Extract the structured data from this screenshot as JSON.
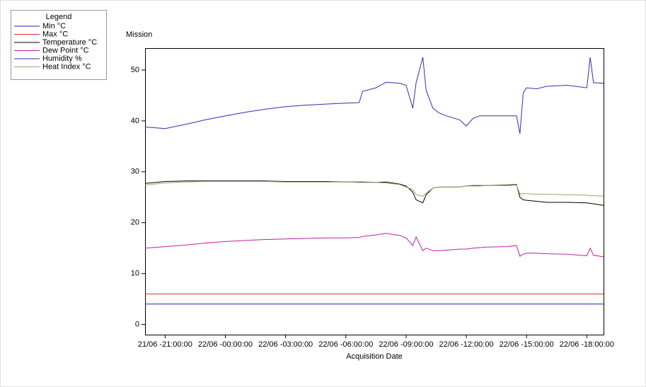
{
  "chart_data": {
    "type": "line",
    "title": "Mission",
    "x_label": "Acquisition Date",
    "legend_title": "Legend",
    "legend_position": "top-left",
    "x": [
      "21/06 -20:00:00",
      "21/06 -21:00:00",
      "21/06 -22:00:00",
      "21/06 -23:00:00",
      "22/06 -00:00:00",
      "22/06 -01:00:00",
      "22/06 -02:00:00",
      "22/06 -03:00:00",
      "22/06 -04:00:00",
      "22/06 -05:00:00",
      "22/06 -06:00:00",
      "22/06 -06:40:00",
      "22/06 -06:50:00",
      "22/06 -07:30:00",
      "22/06 -08:00:00",
      "22/06 -08:40:00",
      "22/06 -09:00:00",
      "22/06 -09:20:00",
      "22/06 -09:30:00",
      "22/06 -09:50:00",
      "22/06 -10:00:00",
      "22/06 -10:20:00",
      "22/06 -10:40:00",
      "22/06 -11:00:00",
      "22/06 -11:40:00",
      "22/06 -12:00:00",
      "22/06 -12:20:00",
      "22/06 -12:40:00",
      "22/06 -13:00:00",
      "22/06 -14:00:00",
      "22/06 -14:30:00",
      "22/06 -14:40:00",
      "22/06 -14:50:00",
      "22/06 -15:00:00",
      "22/06 -15:30:00",
      "22/06 -16:00:00",
      "22/06 -17:00:00",
      "22/06 -18:00:00",
      "22/06 -18:10:00",
      "22/06 -18:20:00",
      "22/06 -18:50:00"
    ],
    "xlim": [
      "21/06 -20:00:00",
      "22/06 -18:50:00"
    ],
    "xticks": [
      "21/06 -21:00:00",
      "22/06 -00:00:00",
      "22/06 -03:00:00",
      "22/06 -06:00:00",
      "22/06 -09:00:00",
      "22/06 -12:00:00",
      "22/06 -15:00:00",
      "22/06 -18:00:00"
    ],
    "ylim": [
      -2,
      54.3
    ],
    "yticks": [
      0,
      10,
      20,
      30,
      40,
      50
    ],
    "series": [
      {
        "name": "Min °C",
        "color": "#2020b0",
        "values": [
          4,
          4,
          4,
          4,
          4,
          4,
          4,
          4,
          4,
          4,
          4,
          4,
          4,
          4,
          4,
          4,
          4,
          4,
          4,
          4,
          4,
          4,
          4,
          4,
          4,
          4,
          4,
          4,
          4,
          4,
          4,
          4,
          4,
          4,
          4,
          4,
          4,
          4,
          4,
          4,
          4
        ]
      },
      {
        "name": "Max °C",
        "color": "#e03030",
        "values": [
          6,
          6,
          6,
          6,
          6,
          6,
          6,
          6,
          6,
          6,
          6,
          6,
          6,
          6,
          6,
          6,
          6,
          6,
          6,
          6,
          6,
          6,
          6,
          6,
          6,
          6,
          6,
          6,
          6,
          6,
          6,
          6,
          6,
          6,
          6,
          6,
          6,
          6,
          6,
          6,
          6
        ]
      },
      {
        "name": "Temperature °C",
        "color": "#000000",
        "values": [
          27.7,
          28.1,
          28.2,
          28.2,
          28.2,
          28.2,
          28.2,
          28.1,
          28.1,
          28.1,
          28.0,
          28.0,
          28.0,
          27.9,
          28.0,
          27.6,
          27.2,
          26,
          24.5,
          23.9,
          25.5,
          26.8,
          27,
          27,
          27,
          27.2,
          27.3,
          27.3,
          27.3,
          27.4,
          27.5,
          25,
          24.5,
          24.4,
          24.2,
          24,
          24,
          23.9,
          23.8,
          23.7,
          23.4
        ]
      },
      {
        "name": "Dew Point °C",
        "color": "#c020a0",
        "values": [
          15,
          15.3,
          15.6,
          16,
          16.3,
          16.5,
          16.7,
          16.8,
          16.9,
          17,
          17,
          17.1,
          17.3,
          17.6,
          17.9,
          17.5,
          17,
          15.5,
          17.2,
          14.5,
          15,
          14.5,
          14.5,
          14.6,
          14.8,
          14.8,
          15,
          15.1,
          15.2,
          15.3,
          15.5,
          13.4,
          13.8,
          14,
          14,
          13.9,
          13.8,
          13.5,
          15,
          13.6,
          13.3
        ]
      },
      {
        "name": "Humidity %",
        "color": "#3030b0",
        "values": [
          38.8,
          38.5,
          39.3,
          40.2,
          41,
          41.7,
          42.3,
          42.8,
          43.1,
          43.3,
          43.5,
          43.6,
          45.8,
          46.5,
          47.6,
          47.4,
          47,
          42.5,
          47.5,
          52.5,
          46,
          42.5,
          41.5,
          41,
          40.2,
          39,
          40.5,
          41,
          41,
          41,
          41,
          37.5,
          45.5,
          46.5,
          46.3,
          46.8,
          47,
          46.5,
          52.5,
          47.5,
          47.4
        ]
      },
      {
        "name": "Heat Index °C",
        "color": "#a0a070",
        "values": [
          27.4,
          27.8,
          28.0,
          28.1,
          28.1,
          28.1,
          28.1,
          28.0,
          28.0,
          28.0,
          28.0,
          27.9,
          27.9,
          27.9,
          27.8,
          27.5,
          27.0,
          26.5,
          25.5,
          25.2,
          25.8,
          26.8,
          27.0,
          27.0,
          27.0,
          27.2,
          27.2,
          27.2,
          27.3,
          27.3,
          27.4,
          25.6,
          25.7,
          25.7,
          25.6,
          25.6,
          25.5,
          25.4,
          25.3,
          25.3,
          25.2
        ]
      }
    ]
  }
}
